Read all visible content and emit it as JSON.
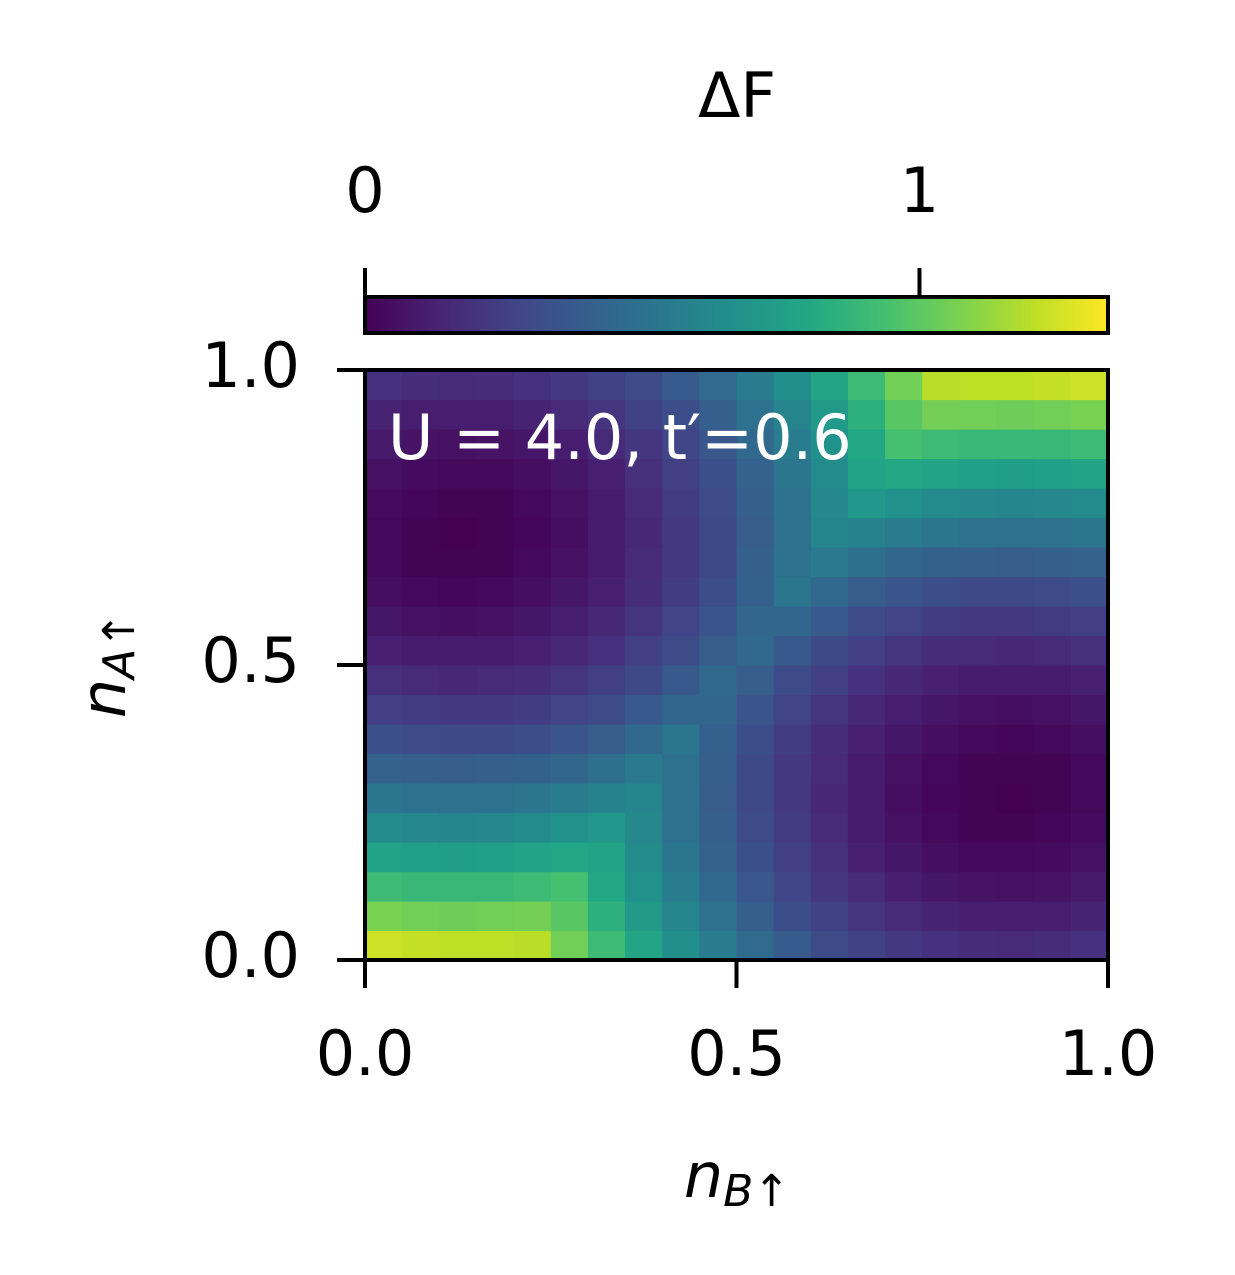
{
  "chart_data": {
    "type": "heatmap",
    "annotation": "U = 4.0, t′=0.6",
    "xlabel": {
      "base": "n",
      "sub": "B↑"
    },
    "ylabel": {
      "base": "n",
      "sub": "A↑"
    },
    "colorbar_label": "ΔF",
    "colormap": "viridis",
    "clim": [
      0,
      1.34
    ],
    "cticks": [
      0,
      1
    ],
    "xlim": [
      0,
      1
    ],
    "ylim": [
      0,
      1
    ],
    "xticks": [
      {
        "value": 0,
        "label": "0.0"
      },
      {
        "value": 0.5,
        "label": "0.5"
      },
      {
        "value": 1,
        "label": "1.0"
      }
    ],
    "yticks": [
      {
        "value": 0,
        "label": "0.0"
      },
      {
        "value": 0.5,
        "label": "0.5"
      },
      {
        "value": 1,
        "label": "1.0"
      }
    ],
    "z": [
      [
        1.24,
        1.22,
        1.21,
        1.21,
        1.2,
        1.05,
        0.91,
        0.78,
        0.66,
        0.55,
        0.46,
        0.38,
        0.31,
        0.26,
        0.22,
        0.19,
        0.17,
        0.16,
        0.17,
        0.19
      ],
      [
        1.07,
        1.05,
        1.04,
        1.05,
        1.06,
        0.99,
        0.85,
        0.72,
        0.6,
        0.5,
        0.4,
        0.32,
        0.26,
        0.2,
        0.16,
        0.13,
        0.11,
        0.11,
        0.11,
        0.13
      ],
      [
        0.91,
        0.89,
        0.89,
        0.89,
        0.91,
        0.94,
        0.8,
        0.67,
        0.56,
        0.45,
        0.36,
        0.28,
        0.21,
        0.16,
        0.11,
        0.08,
        0.07,
        0.06,
        0.07,
        0.09
      ],
      [
        0.77,
        0.75,
        0.74,
        0.75,
        0.77,
        0.8,
        0.77,
        0.64,
        0.52,
        0.42,
        0.33,
        0.25,
        0.18,
        0.12,
        0.08,
        0.05,
        0.03,
        0.03,
        0.04,
        0.06
      ],
      [
        0.64,
        0.62,
        0.61,
        0.62,
        0.64,
        0.67,
        0.71,
        0.62,
        0.5,
        0.4,
        0.31,
        0.23,
        0.16,
        0.1,
        0.06,
        0.03,
        0.01,
        0.01,
        0.02,
        0.04
      ],
      [
        0.52,
        0.5,
        0.5,
        0.5,
        0.52,
        0.55,
        0.59,
        0.61,
        0.5,
        0.39,
        0.3,
        0.22,
        0.15,
        0.1,
        0.05,
        0.02,
        0.01,
        0.0,
        0.01,
        0.03
      ],
      [
        0.42,
        0.4,
        0.39,
        0.4,
        0.41,
        0.44,
        0.49,
        0.54,
        0.5,
        0.4,
        0.3,
        0.22,
        0.16,
        0.1,
        0.06,
        0.03,
        0.01,
        0.01,
        0.01,
        0.03
      ],
      [
        0.33,
        0.31,
        0.3,
        0.3,
        0.32,
        0.35,
        0.39,
        0.45,
        0.52,
        0.41,
        0.32,
        0.24,
        0.17,
        0.12,
        0.08,
        0.05,
        0.03,
        0.02,
        0.03,
        0.05
      ],
      [
        0.25,
        0.23,
        0.22,
        0.22,
        0.24,
        0.27,
        0.31,
        0.37,
        0.44,
        0.44,
        0.35,
        0.27,
        0.2,
        0.15,
        0.11,
        0.08,
        0.06,
        0.05,
        0.06,
        0.08
      ],
      [
        0.18,
        0.16,
        0.15,
        0.16,
        0.17,
        0.2,
        0.25,
        0.3,
        0.37,
        0.45,
        0.39,
        0.31,
        0.25,
        0.19,
        0.15,
        0.12,
        0.1,
        0.1,
        0.1,
        0.12
      ],
      [
        0.12,
        0.1,
        0.1,
        0.1,
        0.12,
        0.15,
        0.19,
        0.25,
        0.31,
        0.39,
        0.45,
        0.37,
        0.3,
        0.25,
        0.2,
        0.17,
        0.16,
        0.15,
        0.16,
        0.18
      ],
      [
        0.08,
        0.06,
        0.05,
        0.06,
        0.08,
        0.11,
        0.15,
        0.2,
        0.27,
        0.35,
        0.44,
        0.44,
        0.37,
        0.31,
        0.27,
        0.24,
        0.22,
        0.22,
        0.23,
        0.25
      ],
      [
        0.05,
        0.03,
        0.02,
        0.03,
        0.05,
        0.08,
        0.12,
        0.17,
        0.24,
        0.32,
        0.41,
        0.52,
        0.45,
        0.39,
        0.35,
        0.32,
        0.3,
        0.3,
        0.31,
        0.33
      ],
      [
        0.03,
        0.01,
        0.01,
        0.01,
        0.03,
        0.06,
        0.1,
        0.16,
        0.22,
        0.3,
        0.4,
        0.5,
        0.54,
        0.49,
        0.44,
        0.41,
        0.4,
        0.39,
        0.4,
        0.42
      ],
      [
        0.03,
        0.01,
        0.0,
        0.01,
        0.02,
        0.05,
        0.1,
        0.15,
        0.22,
        0.3,
        0.39,
        0.5,
        0.61,
        0.59,
        0.55,
        0.52,
        0.5,
        0.5,
        0.5,
        0.52
      ],
      [
        0.04,
        0.02,
        0.01,
        0.01,
        0.03,
        0.06,
        0.1,
        0.16,
        0.23,
        0.31,
        0.4,
        0.5,
        0.62,
        0.71,
        0.67,
        0.64,
        0.62,
        0.61,
        0.62,
        0.64
      ],
      [
        0.06,
        0.04,
        0.03,
        0.03,
        0.05,
        0.08,
        0.12,
        0.18,
        0.25,
        0.33,
        0.42,
        0.52,
        0.64,
        0.77,
        0.8,
        0.77,
        0.75,
        0.74,
        0.75,
        0.77
      ],
      [
        0.09,
        0.07,
        0.06,
        0.07,
        0.08,
        0.11,
        0.16,
        0.21,
        0.28,
        0.36,
        0.45,
        0.56,
        0.67,
        0.8,
        0.94,
        0.91,
        0.89,
        0.89,
        0.89,
        0.91
      ],
      [
        0.13,
        0.11,
        0.11,
        0.11,
        0.13,
        0.16,
        0.2,
        0.26,
        0.32,
        0.4,
        0.5,
        0.6,
        0.72,
        0.85,
        0.99,
        1.06,
        1.05,
        1.04,
        1.05,
        1.07
      ],
      [
        0.19,
        0.17,
        0.16,
        0.17,
        0.19,
        0.22,
        0.26,
        0.31,
        0.38,
        0.46,
        0.55,
        0.66,
        0.78,
        0.91,
        1.05,
        1.2,
        1.21,
        1.21,
        1.22,
        1.24
      ]
    ]
  }
}
